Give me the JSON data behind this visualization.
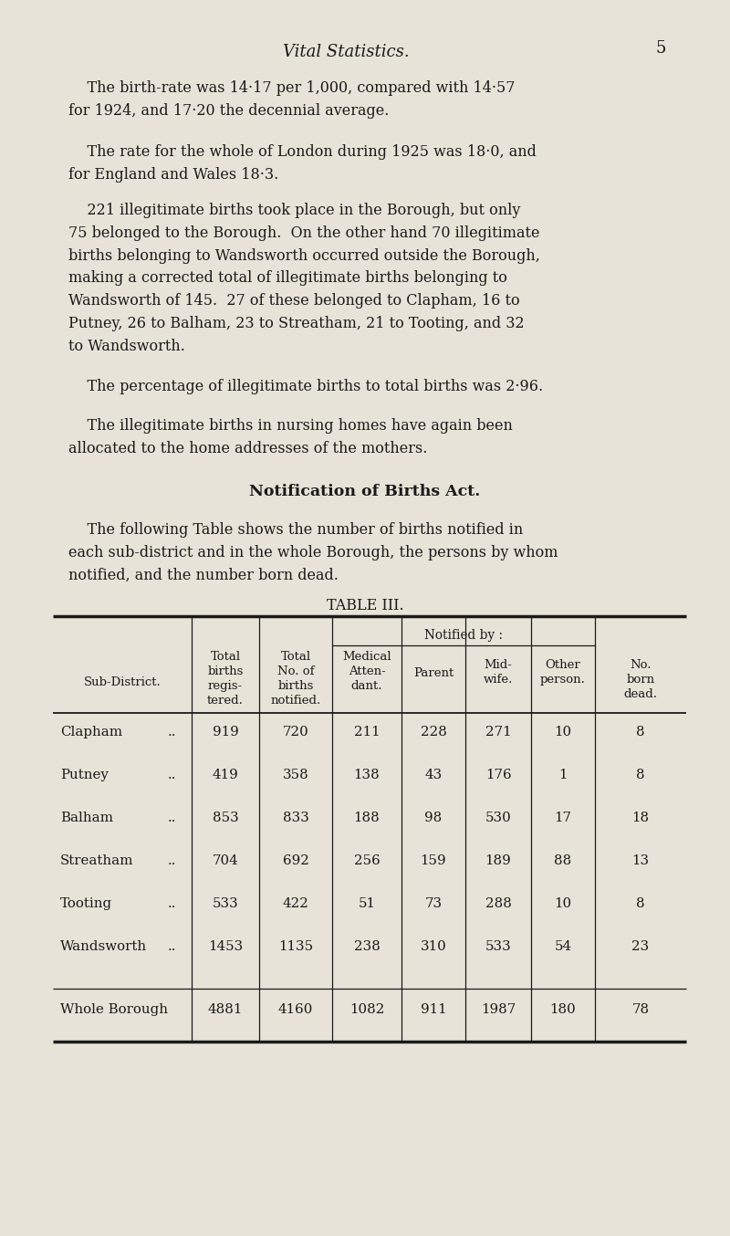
{
  "page_number": "5",
  "header_title": "Vital Statistics.",
  "background_color": "#e8e3d8",
  "text_color": "#1a1a1a",
  "paragraphs": [
    "The birth-rate was 14·17 per 1,000, compared with 14·57\nfor 1924, and 17·20 the decennial average.",
    "The rate for the whole of London during 1925 was 18·0, and\nfor England and Wales 18·3.",
    "221 illegitimate births took place in the Borough, but only\n75 belonged to the Borough.  On the other hand 70 illegitimate\nbirths belonging to Wandsworth occurred outside the Borough,\nmaking a corrected total of illegitimate births belonging to\nWandsworth of 145.  27 of these belonged to Clapham, 16 to\nPutney, 26 to Balham, 23 to Streatham, 21 to Tooting, and 32\nto Wandsworth.",
    "The percentage of illegitimate births to total births was 2·96.",
    "The illegitimate births in nursing homes have again been\nallocated to the home addresses of the mothers."
  ],
  "section_heading": "Notification of Births Act.",
  "section_para": "The following Table shows the number of births notified in\neach sub-district and in the whole Borough, the persons by whom\nnotified, and the number born dead.",
  "table_title": "TABLE III.",
  "notified_by_header": "Notified by :",
  "rows": [
    [
      "Clapham",
      "919",
      "720",
      "211",
      "228",
      "271",
      "10",
      "8"
    ],
    [
      "Putney",
      "419",
      "358",
      "138",
      "43",
      "176",
      "1",
      "8"
    ],
    [
      "Balham",
      "853",
      "833",
      "188",
      "98",
      "530",
      "17",
      "18"
    ],
    [
      "Streatham",
      "704",
      "692",
      "256",
      "159",
      "189",
      "88",
      "13"
    ],
    [
      "Tooting",
      "533",
      "422",
      "51",
      "73",
      "288",
      "10",
      "8"
    ],
    [
      "Wandsworth",
      "1453",
      "1135",
      "238",
      "310",
      "533",
      "54",
      "23"
    ]
  ],
  "total_row": [
    "Whole Borough",
    "4881",
    "4160",
    "1082",
    "911",
    "1987",
    "180",
    "78"
  ]
}
